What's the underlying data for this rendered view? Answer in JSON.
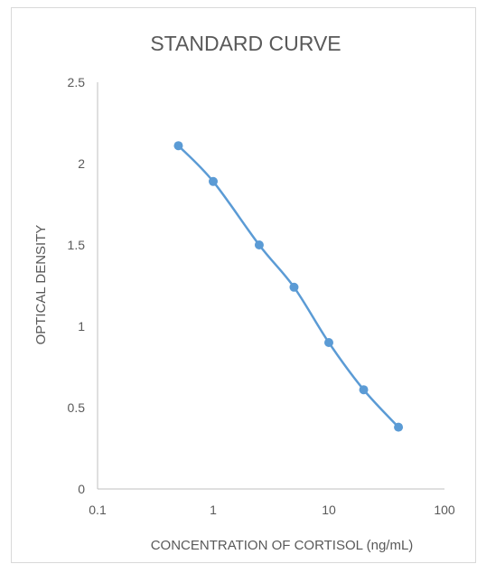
{
  "chart_data": {
    "type": "scatter",
    "title": "STANDARD CURVE",
    "xlabel": "CONCENTRATION OF CORTISOL (ng/mL)",
    "ylabel": "OPTICAL DENSITY",
    "x_scale": "log",
    "xlim": [
      0.1,
      100
    ],
    "ylim": [
      0,
      2.5
    ],
    "x_ticks": [
      "0.1",
      "1",
      "10",
      "100"
    ],
    "y_ticks": [
      "0",
      "0.5",
      "1",
      "1.5",
      "2",
      "2.5"
    ],
    "grid": false,
    "series": [
      {
        "x": [
          0.5,
          1,
          2.5,
          5,
          10,
          20,
          40
        ],
        "y": [
          2.11,
          1.89,
          1.5,
          1.24,
          0.9,
          0.61,
          0.38
        ],
        "color": "#5b9bd5",
        "marker": "circle",
        "line": "smooth"
      }
    ]
  }
}
